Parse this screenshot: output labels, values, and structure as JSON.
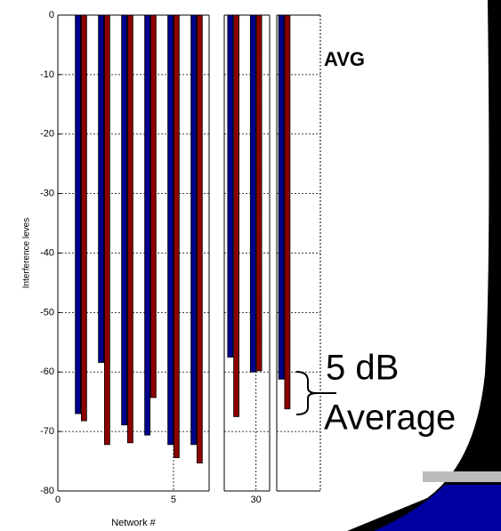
{
  "chart_data": [
    {
      "type": "bar",
      "x": [
        1,
        2,
        3,
        4,
        5,
        6
      ],
      "xlim": [
        0,
        6.54
      ],
      "xticks": [
        0,
        5
      ],
      "ylim": [
        -80,
        0
      ],
      "yticks": [
        0,
        -10,
        -20,
        -30,
        -40,
        -50,
        -60,
        -70,
        -80
      ],
      "grid": true,
      "x_label": "Network #",
      "y_label": "Interference leves",
      "series": [
        {
          "color": "#00008c",
          "values": [
            -67,
            -58.4,
            -68.9,
            -70.6,
            -72.2,
            -72.2
          ]
        },
        {
          "color": "#8c0000",
          "values": [
            -68.2,
            -72.2,
            -71.9,
            -64.3,
            -74.4,
            -75.3
          ]
        }
      ]
    },
    {
      "type": "bar",
      "x": [
        29,
        30
      ],
      "xlim": [
        28.6,
        30.6
      ],
      "xticks": [
        30
      ],
      "series": [
        {
          "color": "#00008c",
          "values": [
            -57.5,
            -60
          ]
        },
        {
          "color": "#8c0000",
          "values": [
            -67.5,
            -59.8
          ]
        }
      ]
    },
    {
      "type": "bar",
      "categories": [
        "AVG"
      ],
      "series": [
        {
          "color": "#00008c",
          "values": [
            -61.2
          ]
        },
        {
          "color": "#8c0000",
          "values": [
            -66.2
          ]
        }
      ],
      "annotations": [
        "5 dB",
        "Average"
      ]
    }
  ]
}
